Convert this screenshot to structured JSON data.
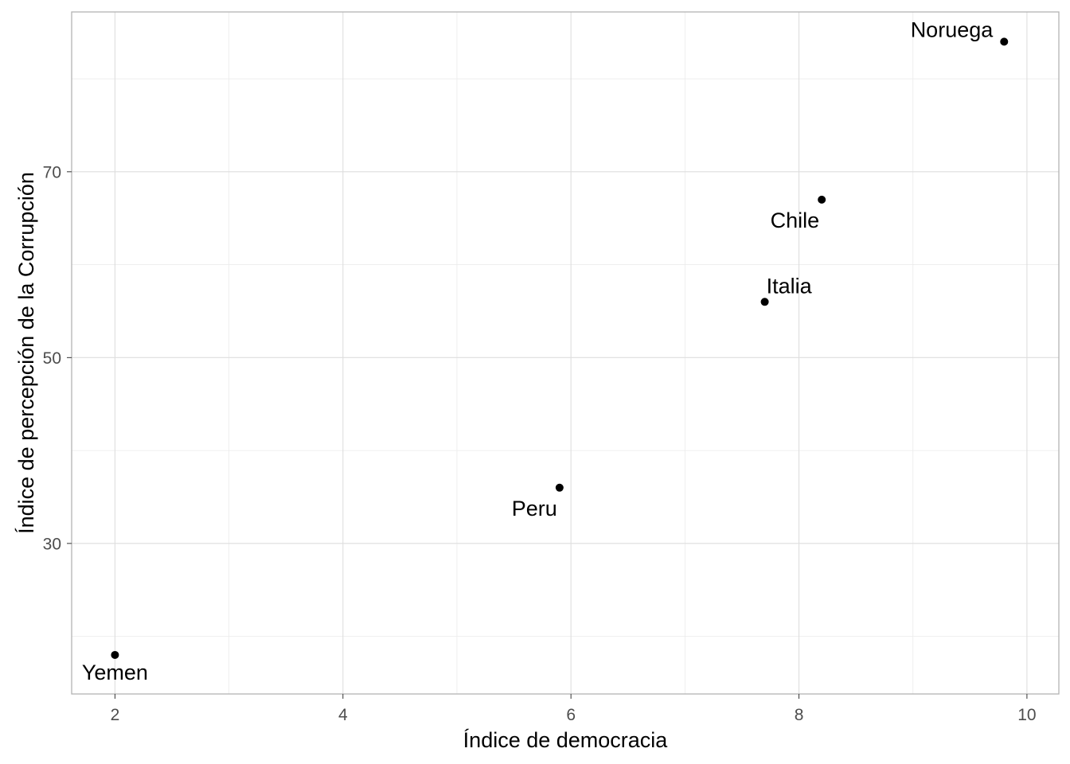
{
  "chart_data": {
    "type": "scatter",
    "title": "",
    "xlabel": "Índice de democracia",
    "ylabel": "Índice de percepción de la Corrupción",
    "xlim": [
      1.62,
      10.28
    ],
    "ylim": [
      13.8,
      87.2
    ],
    "x_ticks": [
      2,
      4,
      6,
      8,
      10
    ],
    "y_ticks": [
      30,
      50,
      70
    ],
    "x_minor": [
      3,
      5,
      7,
      9
    ],
    "y_minor": [
      20,
      40,
      60,
      80
    ],
    "grid": true,
    "legend": "none",
    "points": [
      {
        "label": "Yemen",
        "x": 2.0,
        "y": 18,
        "label_pos": "below"
      },
      {
        "label": "Peru",
        "x": 5.9,
        "y": 36,
        "label_pos": "below-left"
      },
      {
        "label": "Italia",
        "x": 7.7,
        "y": 56,
        "label_pos": "above-right"
      },
      {
        "label": "Chile",
        "x": 8.2,
        "y": 67,
        "label_pos": "below-left"
      },
      {
        "label": "Noruega",
        "x": 9.8,
        "y": 84,
        "label_pos": "left"
      }
    ]
  }
}
